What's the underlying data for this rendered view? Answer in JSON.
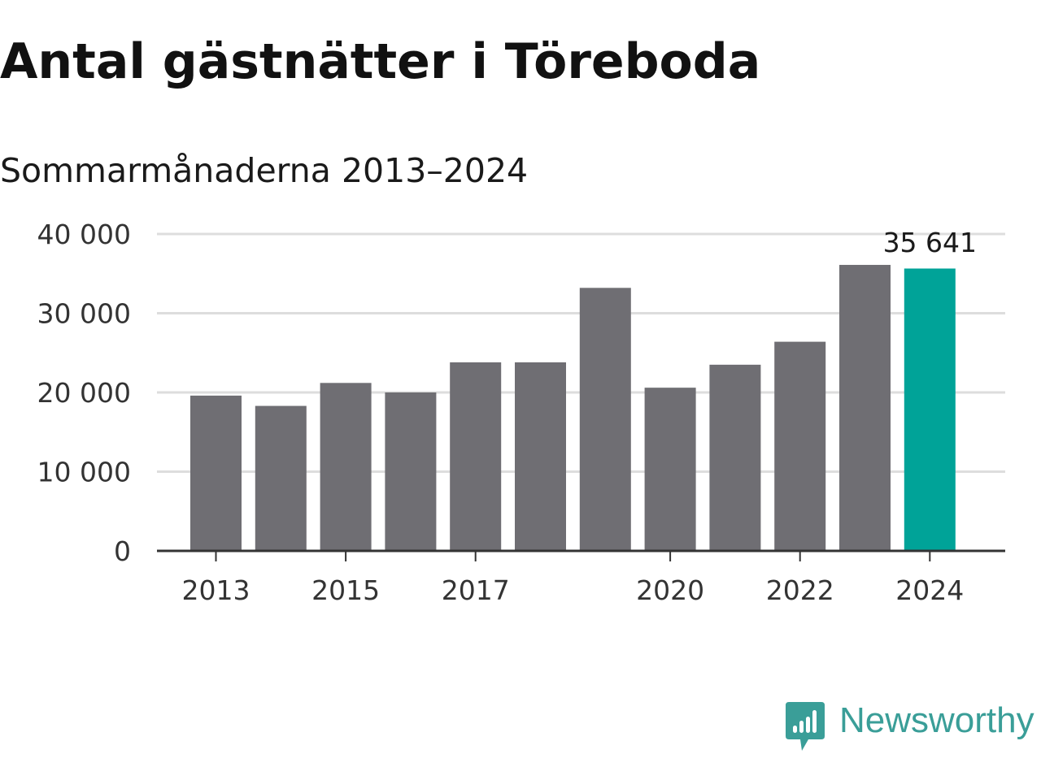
{
  "title": "Antal gästnätter i Töreboda",
  "subtitle": "Sommarmånaderna 2013–2024",
  "colors": {
    "bar": "#6f6e73",
    "highlight": "#00a398",
    "grid": "#dddddd",
    "axis": "#333333",
    "brand": "#3a9e98"
  },
  "chart_data": {
    "type": "bar",
    "categories": [
      "2013",
      "2014",
      "2015",
      "2016",
      "2017",
      "2018",
      "2019",
      "2020",
      "2021",
      "2022",
      "2023",
      "2024"
    ],
    "values": [
      19600,
      18300,
      21200,
      20000,
      23800,
      23800,
      33200,
      20600,
      23500,
      26400,
      36100,
      35641
    ],
    "highlight_index": 11,
    "value_label": "35 641",
    "ylim": [
      0,
      40000
    ],
    "yticks": [
      0,
      10000,
      20000,
      30000,
      40000
    ],
    "ytick_labels": [
      "0",
      "10 000",
      "20 000",
      "30 000",
      "40 000"
    ],
    "xtick_labels": [
      "2013",
      "2015",
      "2017",
      "2020",
      "2022",
      "2024"
    ],
    "grid": true,
    "xlabel": "",
    "ylabel": ""
  },
  "brand": {
    "icon": "newsworthy-logo-icon",
    "name": "Newsworthy"
  }
}
